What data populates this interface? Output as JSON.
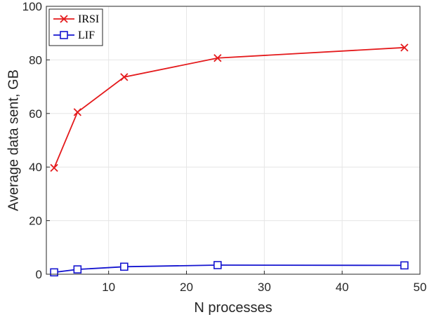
{
  "chart_data": {
    "type": "line",
    "title": "",
    "xlabel": "N processes",
    "ylabel": "Average data sent, GB",
    "xlim": [
      2,
      50
    ],
    "ylim": [
      0,
      100
    ],
    "xticks": [
      10,
      20,
      30,
      40,
      50
    ],
    "yticks": [
      0,
      20,
      40,
      60,
      80,
      100
    ],
    "grid": true,
    "legend_position": "top-left",
    "series": [
      {
        "name": "IRSI",
        "color": "#e41a1c",
        "marker": "x",
        "x": [
          3,
          6,
          12,
          24,
          48
        ],
        "y": [
          39.7,
          60.5,
          73.6,
          80.7,
          84.6
        ]
      },
      {
        "name": "LIF",
        "color": "#1515d0",
        "marker": "square",
        "x": [
          3,
          6,
          12,
          24,
          48
        ],
        "y": [
          0.7,
          1.8,
          2.8,
          3.4,
          3.3
        ]
      }
    ]
  }
}
